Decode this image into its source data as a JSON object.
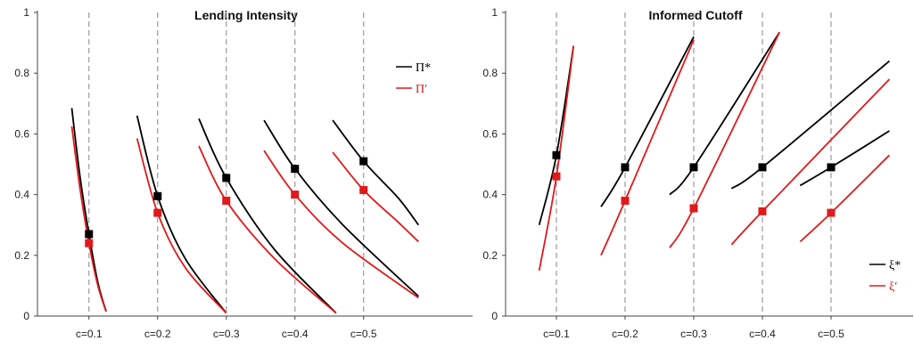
{
  "chart_data": [
    {
      "type": "line",
      "title": "Lending Intensity",
      "ylim": [
        0,
        1
      ],
      "yticks": [
        "0",
        "0.2",
        "0.4",
        "0.6",
        "0.8",
        "1"
      ],
      "categories": [
        "c=0.1",
        "c=0.2",
        "c=0.3",
        "c=0.4",
        "c=0.5"
      ],
      "grid": false,
      "legend_position": "top-right",
      "legend": [
        {
          "label": "Π*",
          "color": "#000000"
        },
        {
          "label": "Π′",
          "color": "#e0191b"
        }
      ],
      "groups": [
        {
          "c": 0.1,
          "black": {
            "x": [
              0.075,
              0.087,
              0.1,
              0.113,
              0.125
            ],
            "y": [
              0.685,
              0.46,
              0.27,
              0.11,
              0.015
            ],
            "marker": 0.27
          },
          "red": {
            "x": [
              0.075,
              0.087,
              0.1,
              0.113,
              0.125
            ],
            "y": [
              0.625,
              0.42,
              0.24,
              0.1,
              0.015
            ],
            "marker": 0.24
          }
        },
        {
          "c": 0.2,
          "black": {
            "x": [
              0.17,
              0.2,
              0.24,
              0.3
            ],
            "y": [
              0.66,
              0.395,
              0.19,
              0.01
            ],
            "marker": 0.395
          },
          "red": {
            "x": [
              0.17,
              0.2,
              0.24,
              0.3
            ],
            "y": [
              0.585,
              0.34,
              0.16,
              0.01
            ],
            "marker": 0.34
          }
        },
        {
          "c": 0.3,
          "black": {
            "x": [
              0.26,
              0.3,
              0.37,
              0.46
            ],
            "y": [
              0.65,
              0.455,
              0.22,
              0.01
            ],
            "marker": 0.455
          },
          "red": {
            "x": [
              0.26,
              0.3,
              0.37,
              0.46
            ],
            "y": [
              0.56,
              0.38,
              0.19,
              0.01
            ],
            "marker": 0.38
          }
        },
        {
          "c": 0.4,
          "black": {
            "x": [
              0.355,
              0.4,
              0.47,
              0.58
            ],
            "y": [
              0.645,
              0.485,
              0.3,
              0.065
            ],
            "marker": 0.485
          },
          "red": {
            "x": [
              0.355,
              0.4,
              0.47,
              0.58
            ],
            "y": [
              0.545,
              0.4,
              0.24,
              0.06
            ],
            "marker": 0.4
          }
        },
        {
          "c": 0.5,
          "black": {
            "x": [
              0.455,
              0.5,
              0.55,
              0.58
            ],
            "y": [
              0.645,
              0.51,
              0.39,
              0.3
            ],
            "marker": 0.51
          },
          "red": {
            "x": [
              0.455,
              0.5,
              0.55,
              0.58
            ],
            "y": [
              0.54,
              0.415,
              0.31,
              0.245
            ],
            "marker": 0.415
          }
        }
      ]
    },
    {
      "type": "line",
      "title": "Informed Cutoff",
      "ylim": [
        0,
        1
      ],
      "yticks": [
        "0",
        "0.2",
        "0.4",
        "0.6",
        "0.8",
        "1"
      ],
      "categories": [
        "c=0.1",
        "c=0.2",
        "c=0.3",
        "c=0.4",
        "c=0.5"
      ],
      "grid": false,
      "legend_position": "bottom-right",
      "legend": [
        {
          "label": "ξ*",
          "color": "#000000"
        },
        {
          "label": "ξ′",
          "color": "#e0191b"
        }
      ],
      "groups": [
        {
          "c": 0.1,
          "black": {
            "x": [
              0.075,
              0.1,
              0.125
            ],
            "y": [
              0.3,
              0.53,
              0.89
            ],
            "marker": 0.53
          },
          "red": {
            "x": [
              0.075,
              0.1,
              0.125
            ],
            "y": [
              0.15,
              0.46,
              0.89
            ],
            "marker": 0.46
          }
        },
        {
          "c": 0.2,
          "black": {
            "x": [
              0.165,
              0.2,
              0.3
            ],
            "y": [
              0.36,
              0.49,
              0.92
            ],
            "marker": 0.49
          },
          "red": {
            "x": [
              0.165,
              0.2,
              0.3
            ],
            "y": [
              0.2,
              0.38,
              0.91
            ],
            "marker": 0.38
          }
        },
        {
          "c": 0.3,
          "black": {
            "x": [
              0.265,
              0.3,
              0.425
            ],
            "y": [
              0.4,
              0.49,
              0.935
            ],
            "marker": 0.49
          },
          "red": {
            "x": [
              0.265,
              0.3,
              0.425
            ],
            "y": [
              0.225,
              0.355,
              0.935
            ],
            "marker": 0.355
          }
        },
        {
          "c": 0.4,
          "black": {
            "x": [
              0.355,
              0.4,
              0.585
            ],
            "y": [
              0.42,
              0.49,
              0.84
            ],
            "marker": 0.49
          },
          "red": {
            "x": [
              0.355,
              0.4,
              0.585
            ],
            "y": [
              0.235,
              0.345,
              0.78
            ],
            "marker": 0.345
          }
        },
        {
          "c": 0.5,
          "black": {
            "x": [
              0.455,
              0.5,
              0.585
            ],
            "y": [
              0.43,
              0.49,
              0.61
            ],
            "marker": 0.49
          },
          "red": {
            "x": [
              0.455,
              0.5,
              0.585
            ],
            "y": [
              0.245,
              0.34,
              0.53
            ],
            "marker": 0.34
          }
        }
      ]
    }
  ]
}
